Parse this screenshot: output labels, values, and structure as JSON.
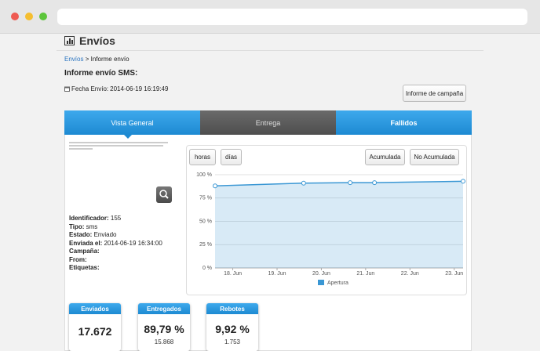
{
  "header": {
    "title": "Envíos"
  },
  "breadcrumb": {
    "link": "Envíos",
    "separator": ">",
    "current": "Informe envío"
  },
  "report": {
    "title": "Informe envío SMS:",
    "date_label": "Fecha Envío:",
    "date": "2014-06-19 16:19:49",
    "button": "Informe de campaña"
  },
  "tabs": [
    "Vista General",
    "Entrega",
    "Fallidos"
  ],
  "details": [
    {
      "label": "Identificador:",
      "value": "155"
    },
    {
      "label": "Tipo:",
      "value": "sms"
    },
    {
      "label": "Estado:",
      "value": "Enviado"
    },
    {
      "label": "Enviada el:",
      "value": "2014-06-19 16:34:00"
    },
    {
      "label": "Campaña:"
    },
    {
      "label": "From:"
    },
    {
      "label": "Etiquetas:"
    }
  ],
  "chart_buttons": [
    "horas",
    "días",
    "Acumulada",
    "No Acumulada"
  ],
  "chart_data": {
    "type": "area",
    "x": [
      17.6,
      19.6,
      20.65,
      21.2,
      23.2
    ],
    "series": [
      {
        "name": "Apertura",
        "color": "#3a97d4",
        "values": [
          88,
          91,
          91.5,
          91.5,
          93
        ]
      }
    ],
    "xlim": [
      17.6,
      23.2
    ],
    "xticks": [
      {
        "value": 18,
        "label": "18. Jun"
      },
      {
        "value": 19,
        "label": "19. Jun"
      },
      {
        "value": 20,
        "label": "20. Jun"
      },
      {
        "value": 21,
        "label": "21. Jun"
      },
      {
        "value": 22,
        "label": "22. Jun"
      },
      {
        "value": 23,
        "label": "23. Jun"
      }
    ],
    "ylim": [
      0,
      100
    ],
    "yticks": [
      {
        "value": 0,
        "label": "0 %"
      },
      {
        "value": 25,
        "label": "25 %"
      },
      {
        "value": 50,
        "label": "50 %"
      },
      {
        "value": 75,
        "label": "75 %"
      },
      {
        "value": 100,
        "label": "100 %"
      }
    ],
    "grid": true
  },
  "stats": [
    {
      "title": "Enviados",
      "value": "17.672"
    },
    {
      "title": "Entregados",
      "value": "89,79 %",
      "count": "15.868"
    },
    {
      "title": "Rebotes",
      "value": "9,92 %",
      "count": "1.753"
    }
  ]
}
